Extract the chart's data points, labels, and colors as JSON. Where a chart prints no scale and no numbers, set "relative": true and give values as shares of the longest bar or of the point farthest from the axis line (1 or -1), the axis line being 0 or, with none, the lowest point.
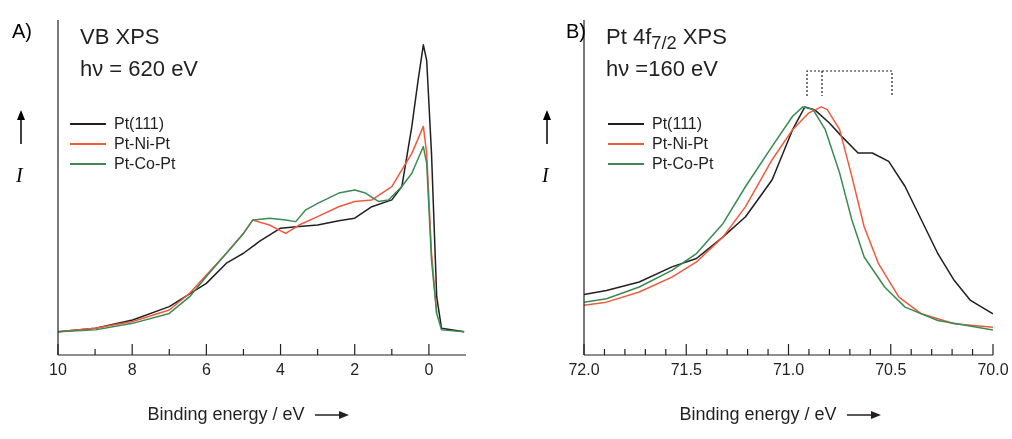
{
  "chart_data": [
    {
      "type": "line",
      "title": "VB XPS",
      "subtitle": "hν = 620 eV",
      "xlabel": "Binding energy / eV",
      "ylabel": "I",
      "annotations": [
        "A)"
      ],
      "relative": true,
      "legend": "top left",
      "xlim": [
        10,
        -1
      ],
      "xticks": [
        10,
        {
          "value": 9,
          "label": null
        },
        8,
        {
          "value": 7,
          "label": null
        },
        6,
        {
          "value": 5,
          "label": null
        },
        4,
        {
          "value": 3,
          "label": null
        },
        2,
        {
          "value": 1,
          "label": null
        },
        0
      ],
      "series": [
        {
          "name": "Pt(111)",
          "color": "#231f20",
          "x": [
            10,
            8.99,
            7.99,
            7.0,
            6.0,
            5.46,
            5.0,
            4.57,
            4.0,
            3.5,
            3.0,
            2.43,
            2.0,
            1.54,
            1.0,
            0.73,
            0.46,
            0.29,
            0.15,
            0.06,
            -0.07,
            -0.21,
            -0.34,
            -0.95
          ],
          "values": [
            0.075,
            0.086,
            0.113,
            0.156,
            0.231,
            0.296,
            0.328,
            0.366,
            0.409,
            0.414,
            0.419,
            0.433,
            0.441,
            0.478,
            0.5,
            0.543,
            0.737,
            0.887,
            1,
            0.95,
            0.65,
            0.188,
            0.086,
            0.075
          ]
        },
        {
          "name": "Pt-Ni-Pt",
          "color": "#f05a3c",
          "x": [
            10,
            8.99,
            7.99,
            7.0,
            6.45,
            6.0,
            5.46,
            5.0,
            4.75,
            4.3,
            3.86,
            3.5,
            3.0,
            2.43,
            2.0,
            1.54,
            1.0,
            0.73,
            0.46,
            0.15,
            0.06,
            -0.07,
            -0.21
          ],
          "values": [
            0.075,
            0.086,
            0.108,
            0.145,
            0.199,
            0.258,
            0.328,
            0.392,
            0.435,
            0.419,
            0.392,
            0.419,
            0.446,
            0.478,
            0.495,
            0.5,
            0.543,
            0.597,
            0.65,
            0.737,
            0.65,
            0.328,
            0.134
          ]
        },
        {
          "name": "Pt-Co-Pt",
          "color": "#3a8a55",
          "x": [
            10,
            8.99,
            7.99,
            7.0,
            6.45,
            6.0,
            5.46,
            5.0,
            4.75,
            4.3,
            3.86,
            3.59,
            3.32,
            3.0,
            2.43,
            2.0,
            1.71,
            1.36,
            1.09,
            0.73,
            0.46,
            0.15,
            0.06,
            -0.07,
            -0.21,
            -0.34,
            -0.95
          ],
          "values": [
            0.075,
            0.081,
            0.102,
            0.134,
            0.188,
            0.253,
            0.328,
            0.392,
            0.435,
            0.441,
            0.435,
            0.43,
            0.468,
            0.489,
            0.522,
            0.532,
            0.522,
            0.495,
            0.5,
            0.543,
            0.586,
            0.672,
            0.618,
            0.306,
            0.134,
            0.081,
            0.075
          ]
        }
      ]
    },
    {
      "type": "line",
      "title": "Pt 4f$_{7/2}$ XPS",
      "subtitle": "hν =160 eV",
      "xlabel": "Binding energy / eV",
      "ylabel": "I",
      "annotations": [
        "B)"
      ],
      "relative": true,
      "legend": "top left",
      "xlim": [
        72,
        70
      ],
      "xticks": [
        {
          "value": 72,
          "label": "72.0"
        },
        {
          "value": 71.9,
          "label": null
        },
        {
          "value": 71.8,
          "label": null
        },
        {
          "value": 71.7,
          "label": null
        },
        {
          "value": 71.6,
          "label": null
        },
        71.5,
        {
          "value": 71.4,
          "label": null
        },
        {
          "value": 71.3,
          "label": null
        },
        {
          "value": 71.2,
          "label": null
        },
        {
          "value": 71.1,
          "label": null
        },
        {
          "value": 71,
          "label": "71.0"
        },
        {
          "value": 70.9,
          "label": null
        },
        {
          "value": 70.8,
          "label": null
        },
        {
          "value": 70.7,
          "label": null
        },
        {
          "value": 70.6,
          "label": null
        },
        70.5,
        {
          "value": 70.4,
          "label": null
        },
        {
          "value": 70.3,
          "label": null
        },
        {
          "value": 70.2,
          "label": null
        },
        {
          "value": 70.1,
          "label": null
        },
        {
          "value": 70,
          "label": "70.0"
        }
      ],
      "series": [
        {
          "name": "Pt(111)",
          "color": "#231f20",
          "x": [
            72.0,
            71.89,
            71.73,
            71.57,
            71.45,
            71.32,
            71.21,
            71.08,
            70.98,
            70.92,
            70.87,
            70.8,
            70.74,
            70.66,
            70.59,
            70.51,
            70.43,
            70.35,
            70.27,
            70.19,
            70.11,
            70.0
          ],
          "values": [
            0.244,
            0.26,
            0.294,
            0.355,
            0.389,
            0.476,
            0.557,
            0.706,
            0.908,
            1,
            0.987,
            0.935,
            0.881,
            0.814,
            0.814,
            0.78,
            0.679,
            0.544,
            0.409,
            0.301,
            0.22,
            0.166
          ]
        },
        {
          "name": "Pt-Ni-Pt",
          "color": "#f05a3c",
          "x": [
            72.0,
            71.89,
            71.73,
            71.57,
            71.45,
            71.32,
            71.21,
            71.08,
            70.98,
            70.9,
            70.84,
            70.81,
            70.75,
            70.69,
            70.63,
            70.56,
            70.46,
            70.35,
            70.19,
            70.0
          ],
          "values": [
            0.2,
            0.213,
            0.254,
            0.314,
            0.375,
            0.476,
            0.598,
            0.787,
            0.908,
            0.976,
            1,
            0.989,
            0.908,
            0.719,
            0.517,
            0.368,
            0.233,
            0.166,
            0.126,
            0.112
          ]
        },
        {
          "name": "Pt-Co-Pt",
          "color": "#3a8a55",
          "x": [
            72.0,
            71.89,
            71.73,
            71.57,
            71.45,
            71.32,
            71.21,
            71.08,
            70.98,
            70.93,
            70.88,
            70.82,
            70.75,
            70.69,
            70.63,
            70.53,
            70.43,
            70.27,
            70.0
          ],
          "values": [
            0.213,
            0.227,
            0.274,
            0.341,
            0.409,
            0.53,
            0.679,
            0.841,
            0.962,
            1,
            0.989,
            0.908,
            0.733,
            0.544,
            0.395,
            0.274,
            0.193,
            0.139,
            0.101
          ]
        }
      ]
    }
  ]
}
